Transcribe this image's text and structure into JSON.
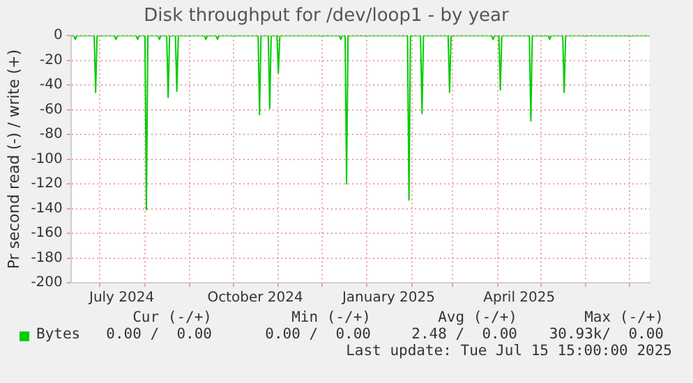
{
  "chart_data": {
    "type": "line",
    "title": "Disk throughput for /dev/loop1 - by year",
    "ylabel": "Pr second read (-) / write (+)",
    "x": [
      "2024-06-11",
      "2024-06-13",
      "2024-06-14",
      "2024-06-15",
      "2024-06-27",
      "2024-06-28",
      "2024-06-29",
      "2024-07-11",
      "2024-07-12",
      "2024-07-13",
      "2024-07-26",
      "2024-07-27",
      "2024-07-28",
      "2024-08-01",
      "2024-08-02",
      "2024-08-03",
      "2024-08-10",
      "2024-08-11",
      "2024-08-12",
      "2024-08-16",
      "2024-08-17",
      "2024-08-18",
      "2024-08-22",
      "2024-08-23",
      "2024-08-24",
      "2024-09-11",
      "2024-09-12",
      "2024-09-13",
      "2024-09-19",
      "2024-09-20",
      "2024-09-21",
      "2024-10-18",
      "2024-10-19",
      "2024-10-20",
      "2024-10-25",
      "2024-10-26",
      "2024-10-27",
      "2024-10-31",
      "2024-11-01",
      "2024-11-02",
      "2024-12-13",
      "2024-12-14",
      "2024-12-15",
      "2024-12-17",
      "2024-12-18",
      "2024-12-19",
      "2025-01-29",
      "2025-01-30",
      "2025-01-31",
      "2025-02-07",
      "2025-02-08",
      "2025-02-09",
      "2025-02-26",
      "2025-02-27",
      "2025-02-28",
      "2025-03-28",
      "2025-03-29",
      "2025-03-30",
      "2025-04-02",
      "2025-04-03",
      "2025-04-04",
      "2025-04-23",
      "2025-04-24",
      "2025-04-25",
      "2025-05-06",
      "2025-05-07",
      "2025-05-08",
      "2025-05-16",
      "2025-05-17",
      "2025-05-18",
      "2025-07-15"
    ],
    "series": [
      {
        "name": "Bytes",
        "color": "#00cc00",
        "values": [
          0,
          0,
          -3,
          0,
          0,
          -46,
          0,
          0,
          -3,
          0,
          0,
          -3,
          0,
          0,
          -141,
          0,
          0,
          -3,
          0,
          0,
          -50,
          0,
          0,
          -45,
          0,
          0,
          -3,
          0,
          0,
          -3,
          0,
          0,
          -64,
          0,
          0,
          -59,
          0,
          0,
          -30,
          0,
          0,
          -3,
          0,
          0,
          -120,
          0,
          0,
          -133,
          0,
          0,
          -63,
          0,
          0,
          -46,
          0,
          0,
          -3,
          0,
          0,
          -44,
          0,
          0,
          -69,
          0,
          0,
          -3,
          0,
          0,
          -46,
          0,
          0
        ]
      }
    ],
    "xlim": [
      "2024-06-11",
      "2025-07-15"
    ],
    "xticks": [
      {
        "value": "2024-07-01",
        "label": null
      },
      {
        "value": "2024-07-16",
        "label": "July 2024"
      },
      {
        "value": "2024-08-01",
        "label": null
      },
      {
        "value": "2024-09-01",
        "label": null
      },
      {
        "value": "2024-10-01",
        "label": null
      },
      {
        "value": "2024-10-16",
        "label": "October 2024"
      },
      {
        "value": "2024-11-01",
        "label": null
      },
      {
        "value": "2024-12-01",
        "label": null
      },
      {
        "value": "2025-01-01",
        "label": null
      },
      {
        "value": "2025-01-16",
        "label": "January 2025"
      },
      {
        "value": "2025-02-01",
        "label": null
      },
      {
        "value": "2025-03-01",
        "label": null
      },
      {
        "value": "2025-04-01",
        "label": null
      },
      {
        "value": "2025-04-16",
        "label": "April 2025"
      },
      {
        "value": "2025-05-01",
        "label": null
      },
      {
        "value": "2025-06-01",
        "label": null
      },
      {
        "value": "2025-07-01",
        "label": null
      }
    ],
    "ylim": [
      -200,
      0
    ],
    "yticks": [
      -200,
      -180,
      -160,
      -140,
      -120,
      -100,
      -80,
      -60,
      -40,
      -20,
      0
    ],
    "grid": true,
    "legend": "bottom",
    "marker": "none",
    "line_style": "solid",
    "annotations": [
      "Cur (-/+)",
      "Min (-/+)",
      "Avg (-/+)",
      "Max (-/+)",
      "0.00 /  0.00",
      "0.00 /  0.00",
      "2.48 /  0.00",
      "30.93k/  0.00",
      "Last update: Tue Jul 15 15:00:00 2025"
    ]
  }
}
